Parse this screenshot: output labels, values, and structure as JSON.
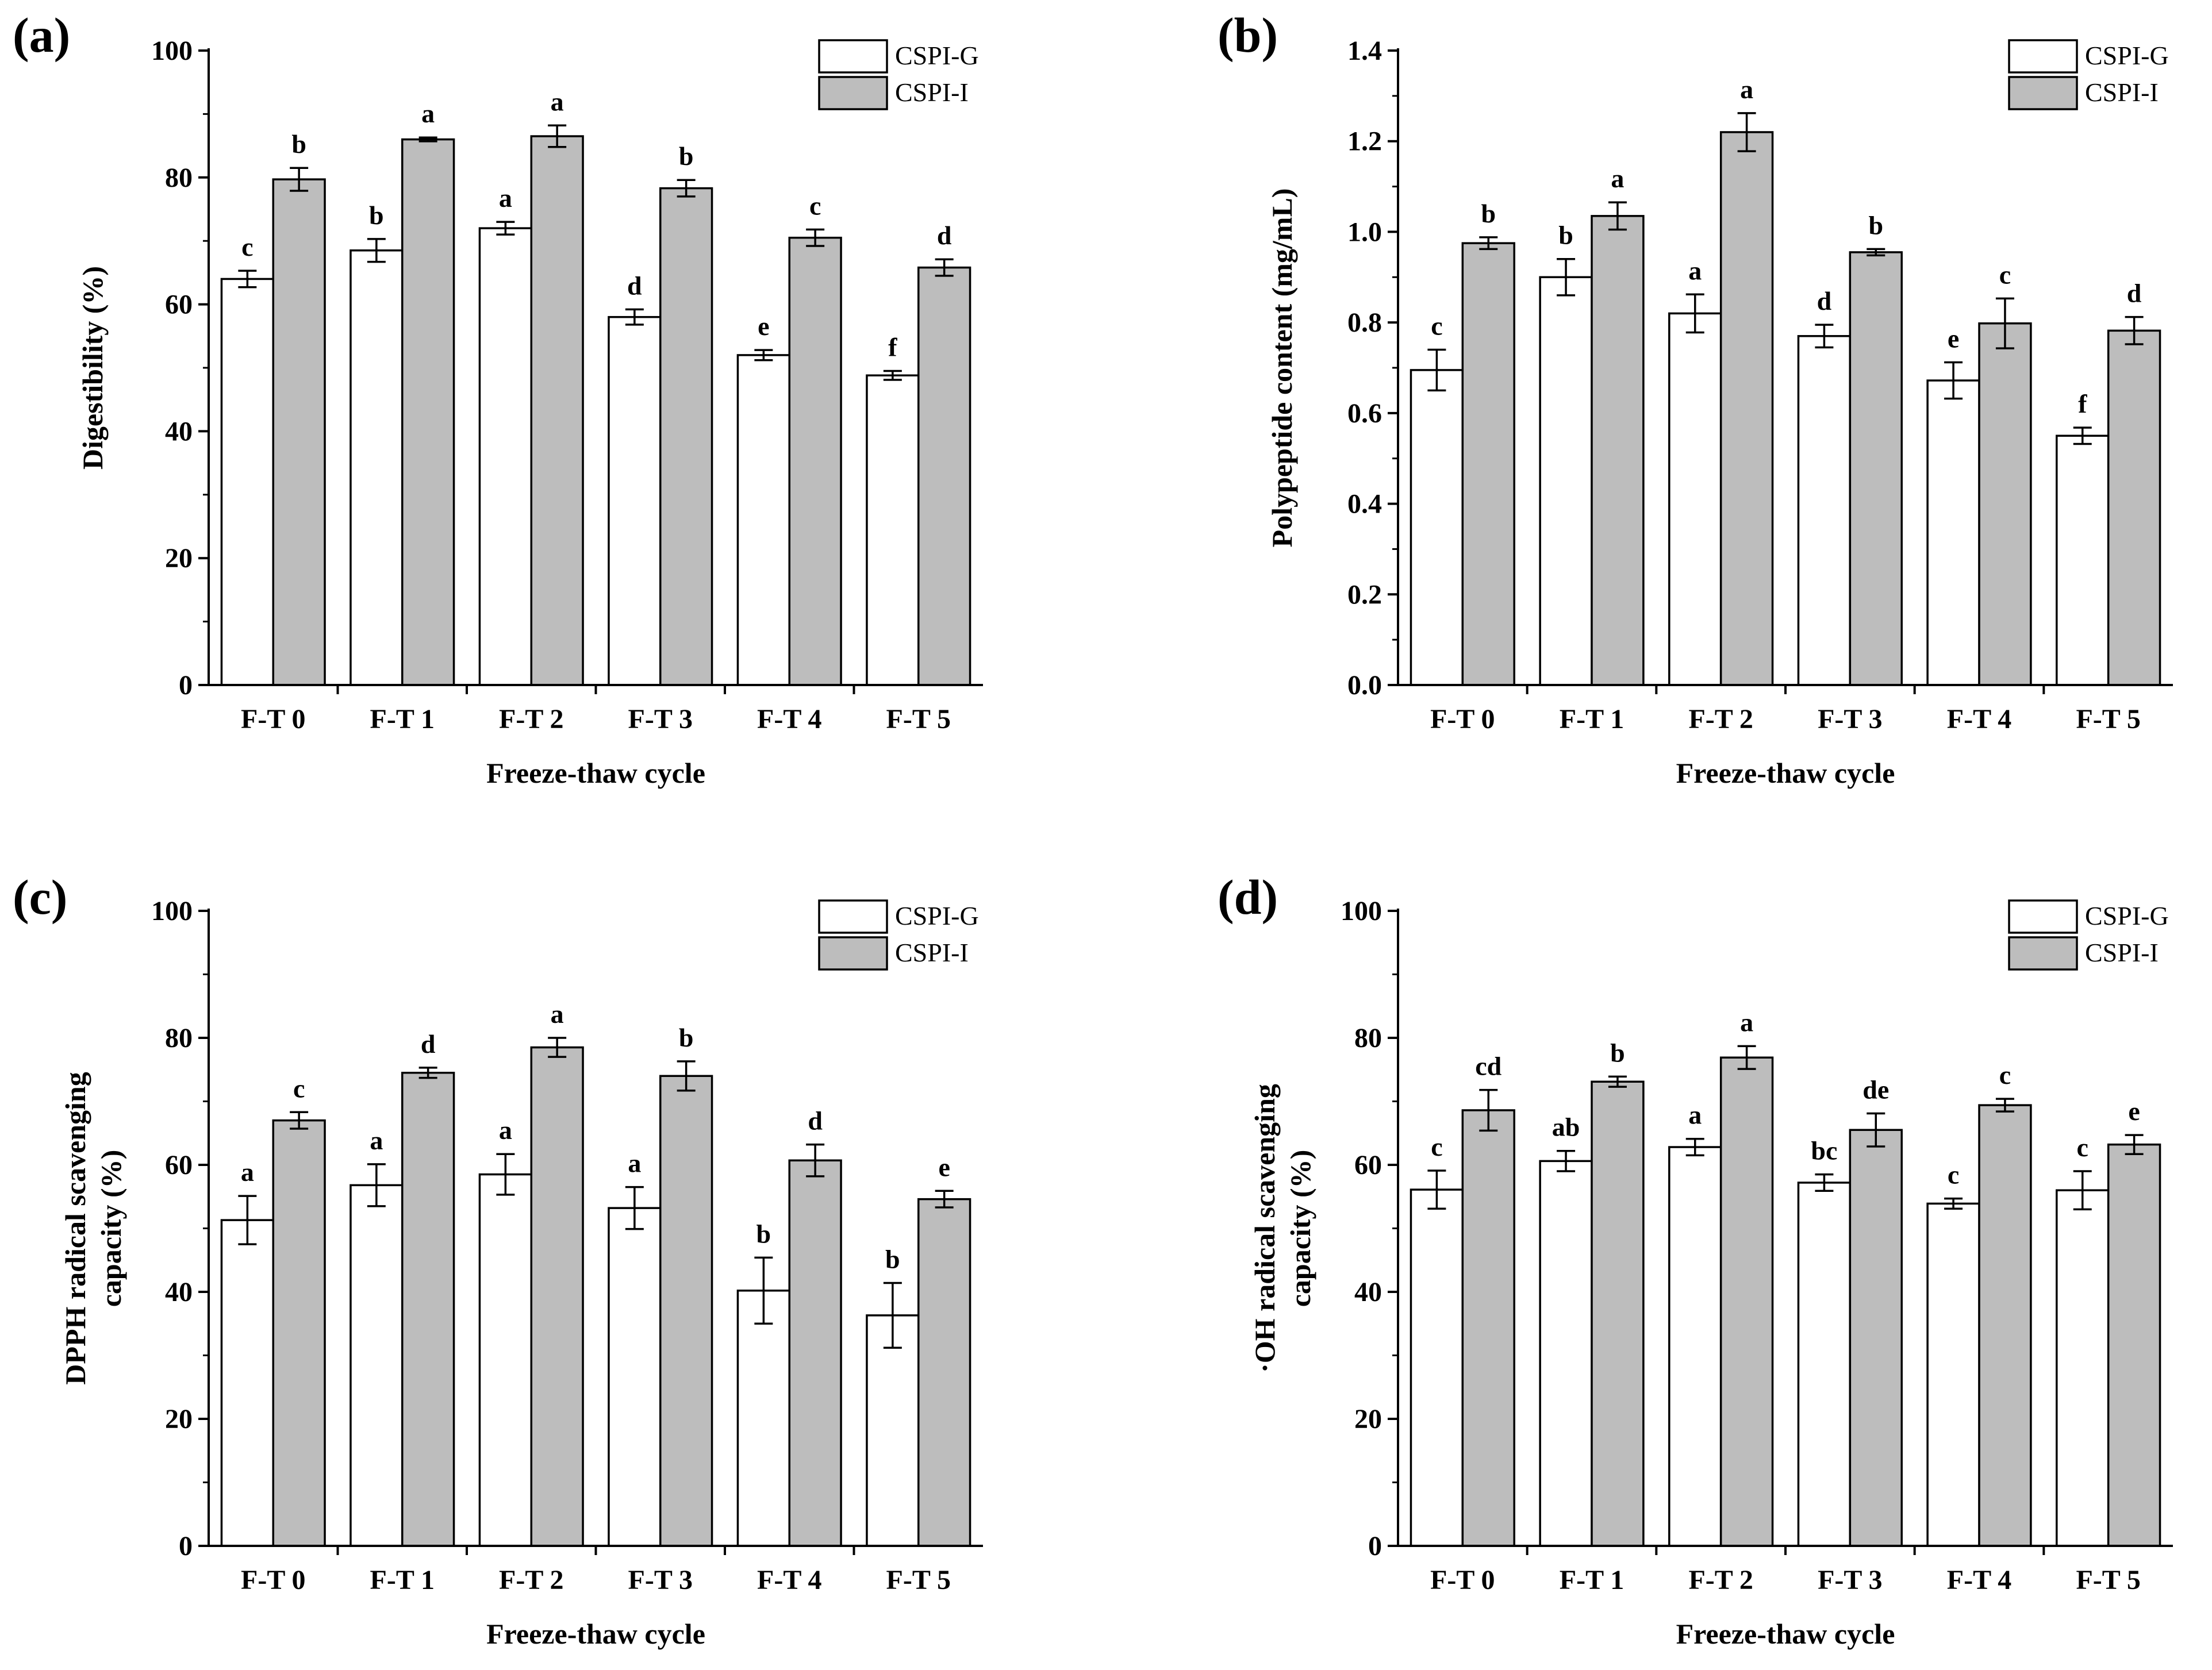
{
  "colors": {
    "CSPI-G": "#ffffff",
    "CSPI-I": "#bdbdbd",
    "stroke": "#000000"
  },
  "chart_data": [
    {
      "panel": "(a)",
      "type": "bar",
      "categories": [
        "F-T 0",
        "F-T 1",
        "F-T 2",
        "F-T 3",
        "F-T 4",
        "F-T 5"
      ],
      "xlabel": "Freeze-thaw cycle",
      "ylabel": "Digestibility (%)",
      "ylim": [
        0,
        100
      ],
      "yticks": [
        "0",
        "20",
        "40",
        "60",
        "80",
        "100"
      ],
      "legend": "top-right",
      "series": [
        {
          "name": "CSPI-G",
          "values": [
            64,
            68.5,
            72,
            58,
            52,
            48.8
          ],
          "errors": [
            1.3,
            1.8,
            1.0,
            1.2,
            0.8,
            0.7
          ],
          "labels": [
            "c",
            "b",
            "a",
            "d",
            "e",
            "f"
          ]
        },
        {
          "name": "CSPI-I",
          "values": [
            79.7,
            86,
            86.5,
            78.3,
            70.5,
            65.8
          ],
          "errors": [
            1.8,
            0.3,
            1.7,
            1.3,
            1.3,
            1.3
          ],
          "labels": [
            "b",
            "a",
            "a",
            "b",
            "c",
            "d"
          ]
        }
      ]
    },
    {
      "panel": "(b)",
      "type": "bar",
      "categories": [
        "F-T 0",
        "F-T 1",
        "F-T 2",
        "F-T 3",
        "F-T 4",
        "F-T 5"
      ],
      "xlabel": "Freeze-thaw cycle",
      "ylabel": "Polypeptide content (mg/mL)",
      "ylim": [
        0,
        1.4
      ],
      "yticks": [
        "0.0",
        "0.2",
        "0.4",
        "0.6",
        "0.8",
        "1.0",
        "1.2",
        "1.4"
      ],
      "legend": "top-right",
      "series": [
        {
          "name": "CSPI-G",
          "values": [
            0.695,
            0.9,
            0.82,
            0.77,
            0.672,
            0.55
          ],
          "errors": [
            0.045,
            0.04,
            0.042,
            0.025,
            0.04,
            0.018
          ],
          "labels": [
            "c",
            "b",
            "a",
            "d",
            "e",
            "f"
          ]
        },
        {
          "name": "CSPI-I",
          "values": [
            0.975,
            1.035,
            1.22,
            0.955,
            0.798,
            0.782
          ],
          "errors": [
            0.013,
            0.03,
            0.042,
            0.007,
            0.055,
            0.03
          ],
          "labels": [
            "b",
            "a",
            "a",
            "b",
            "c",
            "d"
          ]
        }
      ]
    },
    {
      "panel": "(c)",
      "type": "bar",
      "categories": [
        "F-T 0",
        "F-T 1",
        "F-T 2",
        "F-T 3",
        "F-T 4",
        "F-T 5"
      ],
      "xlabel": "Freeze-thaw cycle",
      "ylabel": [
        "DPPH radical scavenging",
        "capacity (%)"
      ],
      "ylim": [
        0,
        100
      ],
      "yticks": [
        "0",
        "20",
        "40",
        "60",
        "80",
        "100"
      ],
      "legend": "top-right",
      "series": [
        {
          "name": "CSPI-G",
          "values": [
            51.3,
            56.8,
            58.5,
            53.2,
            40.2,
            36.3
          ],
          "errors": [
            3.8,
            3.3,
            3.2,
            3.3,
            5.2,
            5.1
          ],
          "labels": [
            "a",
            "a",
            "a",
            "a",
            "b",
            "b"
          ]
        },
        {
          "name": "CSPI-I",
          "values": [
            67,
            74.5,
            78.5,
            74,
            60.7,
            54.6
          ],
          "errors": [
            1.3,
            0.8,
            1.5,
            2.3,
            2.5,
            1.3
          ],
          "labels": [
            "c",
            "d",
            "a",
            "b",
            "d",
            "e"
          ]
        }
      ]
    },
    {
      "panel": "(d)",
      "type": "bar",
      "categories": [
        "F-T 0",
        "F-T 1",
        "F-T 2",
        "F-T 3",
        "F-T 4",
        "F-T 5"
      ],
      "xlabel": "Freeze-thaw cycle",
      "ylabel": [
        "·OH  radical scavenging",
        "capacity (%)"
      ],
      "ylim": [
        0,
        100
      ],
      "yticks": [
        "0",
        "20",
        "40",
        "60",
        "80",
        "100"
      ],
      "legend": "top-right",
      "series": [
        {
          "name": "CSPI-G",
          "values": [
            56.1,
            60.6,
            62.8,
            57.2,
            53.9,
            56
          ],
          "errors": [
            3.0,
            1.6,
            1.3,
            1.3,
            0.8,
            3.0
          ],
          "labels": [
            "c",
            "ab",
            "a",
            "bc",
            "c",
            "c"
          ]
        },
        {
          "name": "CSPI-I",
          "values": [
            68.6,
            73.1,
            76.9,
            65.5,
            69.4,
            63.2
          ],
          "errors": [
            3.2,
            0.8,
            1.8,
            2.6,
            1.0,
            1.5
          ],
          "labels": [
            "cd",
            "b",
            "a",
            "de",
            "c",
            "e"
          ]
        }
      ]
    }
  ]
}
